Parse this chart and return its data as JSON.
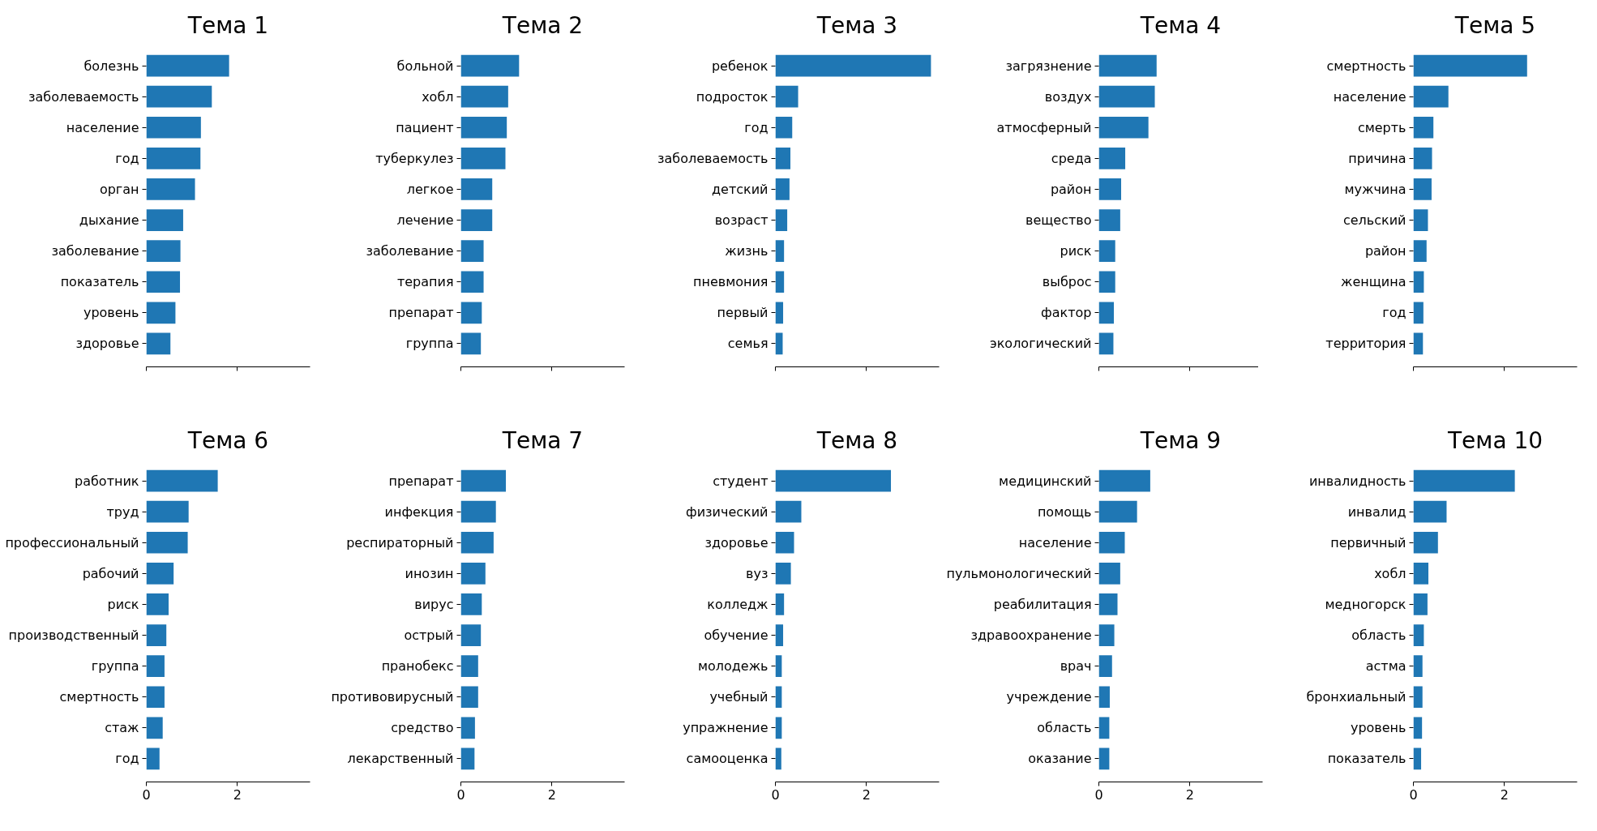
{
  "chart_data": [
    {
      "type": "bar",
      "orientation": "horizontal",
      "title": "Тема 1",
      "color": "#1f77b4",
      "xlim": [
        0,
        3.6
      ],
      "xticks": [
        0,
        2
      ],
      "tick_labels": "y",
      "categories": [
        "болезнь",
        "заболеваемость",
        "население",
        "год",
        "орган",
        "дыхание",
        "заболевание",
        "показатель",
        "уровень",
        "здоровье"
      ],
      "values": [
        1.82,
        1.44,
        1.2,
        1.19,
        1.07,
        0.81,
        0.75,
        0.74,
        0.64,
        0.53
      ]
    },
    {
      "type": "bar",
      "orientation": "horizontal",
      "title": "Тема 2",
      "color": "#1f77b4",
      "xlim": [
        0,
        3.6
      ],
      "xticks": [
        0,
        2
      ],
      "tick_labels": "y",
      "categories": [
        "больной",
        "хобл",
        "пациент",
        "туберкулез",
        "легкое",
        "лечение",
        "заболевание",
        "терапия",
        "препарат",
        "группа"
      ],
      "values": [
        1.28,
        1.04,
        1.01,
        0.98,
        0.69,
        0.69,
        0.5,
        0.5,
        0.46,
        0.44
      ]
    },
    {
      "type": "bar",
      "orientation": "horizontal",
      "title": "Тема 3",
      "color": "#1f77b4",
      "xlim": [
        0,
        3.6
      ],
      "xticks": [
        0,
        2
      ],
      "tick_labels": "y",
      "categories": [
        "ребенок",
        "подросток",
        "год",
        "заболеваемость",
        "детский",
        "возраст",
        "жизнь",
        "пневмония",
        "первый",
        "семья"
      ],
      "values": [
        3.42,
        0.5,
        0.37,
        0.33,
        0.31,
        0.26,
        0.19,
        0.19,
        0.17,
        0.16
      ]
    },
    {
      "type": "bar",
      "orientation": "horizontal",
      "title": "Тема 4",
      "color": "#1f77b4",
      "xlim": [
        0,
        3.6
      ],
      "xticks": [
        0,
        2
      ],
      "tick_labels": "y",
      "categories": [
        "загрязнение",
        "воздух",
        "атмосферный",
        "среда",
        "район",
        "вещество",
        "риск",
        "выброс",
        "фактор",
        "экологический"
      ],
      "values": [
        1.27,
        1.23,
        1.09,
        0.58,
        0.49,
        0.47,
        0.36,
        0.36,
        0.33,
        0.32
      ]
    },
    {
      "type": "bar",
      "orientation": "horizontal",
      "title": "Тема 5",
      "color": "#1f77b4",
      "xlim": [
        0,
        3.6
      ],
      "xticks": [
        0,
        2
      ],
      "tick_labels": "y",
      "categories": [
        "смертность",
        "население",
        "смерть",
        "причина",
        "мужчина",
        "сельский",
        "район",
        "женщина",
        "год",
        "территория"
      ],
      "values": [
        2.5,
        0.77,
        0.44,
        0.41,
        0.4,
        0.32,
        0.29,
        0.23,
        0.22,
        0.21
      ]
    },
    {
      "type": "bar",
      "orientation": "horizontal",
      "title": "Тема 6",
      "color": "#1f77b4",
      "xlim": [
        0,
        3.6
      ],
      "xticks": [
        0,
        2
      ],
      "categories": [
        "работник",
        "труд",
        "профессиональный",
        "рабочий",
        "риск",
        "производственный",
        "группа",
        "смертность",
        "стаж",
        "год"
      ],
      "values": [
        1.57,
        0.93,
        0.91,
        0.6,
        0.49,
        0.44,
        0.4,
        0.4,
        0.36,
        0.29
      ]
    },
    {
      "type": "bar",
      "orientation": "horizontal",
      "title": "Тема 7",
      "color": "#1f77b4",
      "xlim": [
        0,
        3.6
      ],
      "xticks": [
        0,
        2
      ],
      "categories": [
        "препарат",
        "инфекция",
        "респираторный",
        "инозин",
        "вирус",
        "острый",
        "пранобекс",
        "противовирусный",
        "средство",
        "лекарственный"
      ],
      "values": [
        0.99,
        0.77,
        0.72,
        0.54,
        0.46,
        0.44,
        0.38,
        0.38,
        0.31,
        0.3
      ]
    },
    {
      "type": "bar",
      "orientation": "horizontal",
      "title": "Тема 8",
      "color": "#1f77b4",
      "xlim": [
        0,
        3.6
      ],
      "xticks": [
        0,
        2
      ],
      "categories": [
        "студент",
        "физический",
        "здоровье",
        "вуз",
        "колледж",
        "обучение",
        "молодежь",
        "учебный",
        "упражнение",
        "самооценка"
      ],
      "values": [
        2.54,
        0.57,
        0.41,
        0.34,
        0.19,
        0.17,
        0.14,
        0.14,
        0.14,
        0.13
      ]
    },
    {
      "type": "bar",
      "orientation": "horizontal",
      "title": "Тема 9",
      "color": "#1f77b4",
      "xlim": [
        0,
        3.6
      ],
      "xticks": [
        0,
        2
      ],
      "categories": [
        "медицинский",
        "помощь",
        "население",
        "пульмонологический",
        "реабилитация",
        "здравоохранение",
        "врач",
        "учреждение",
        "область",
        "оказание"
      ],
      "values": [
        1.13,
        0.84,
        0.57,
        0.47,
        0.41,
        0.34,
        0.29,
        0.24,
        0.23,
        0.23
      ]
    },
    {
      "type": "bar",
      "orientation": "horizontal",
      "title": "Тема 10",
      "color": "#1f77b4",
      "xlim": [
        0,
        3.6
      ],
      "xticks": [
        0,
        2
      ],
      "categories": [
        "инвалидность",
        "инвалид",
        "первичный",
        "хобл",
        "медногорск",
        "область",
        "астма",
        "бронхиальный",
        "уровень",
        "показатель"
      ],
      "values": [
        2.23,
        0.73,
        0.54,
        0.33,
        0.31,
        0.23,
        0.2,
        0.2,
        0.19,
        0.17
      ]
    }
  ]
}
